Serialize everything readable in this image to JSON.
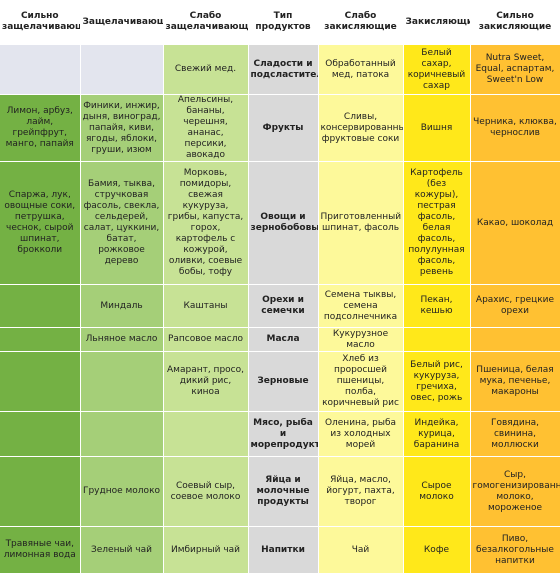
{
  "table": {
    "headers": [
      "Сильно защелачивающие",
      "Защелачивающие",
      "Слабо защелачивающие",
      "Тип продуктов",
      "Слабо закисляющие",
      "Закисляющие",
      "Сильно закисляющие"
    ],
    "rows": [
      [
        null,
        null,
        "Свежий мед.",
        "Сладости и подсластители",
        "Обработанный мед, патока",
        "Белый сахар, коричневый сахар",
        "Nutra Sweet, Equal, аспартам, Sweet'n Low"
      ],
      [
        "Лимон, арбуз, лайм, грейпфрут, манго, папайя",
        "Финики, инжир, дыня, виноград, папайя, киви, ягоды, яблоки, груши, изюм",
        "Апельсины, бананы, черешня, ананас, персики, авокадо",
        "Фрукты",
        "Сливы, консервированные фруктовые соки",
        "Вишня",
        "Черника, клюква, чернослив"
      ],
      [
        "Спаржа, лук, овощные соки, петрушка, чеснок, сырой шпинат, брокколи",
        "Бамия, тыква, стручковая фасоль, свекла, сельдерей, салат, цуккини, батат, рожковое дерево",
        "Морковь, помидоры, свежая кукуруза, грибы, капуста, горох, картофель с кожурой, оливки, соевые бобы, тофу",
        "Овощи и зернобобовые",
        "Приготовленный шпинат, фасоль",
        "Картофель (без кожуры), пестрая фасоль, белая фасоль, полулунная фасоль, ревень",
        "Какао, шоколад"
      ],
      [
        null,
        "Миндаль",
        "Каштаны",
        "Орехи и семечки",
        "Семена тыквы, семена подсолнечника",
        "Пекан, кешью",
        "Арахис, грецкие орехи"
      ],
      [
        null,
        "Льняное масло",
        "Рапсовое масло",
        "Масла",
        "Кукурузное масло",
        null,
        null
      ],
      [
        null,
        null,
        "Амарант, просо, дикий рис, киноа",
        "Зерновые",
        "Хлеб из проросшей пшеницы, полба, коричневый рис",
        "Белый рис, кукуруза, гречиха, овес, рожь",
        "Пшеница, белая мука, печенье, макароны"
      ],
      [
        null,
        null,
        null,
        "Мясо, рыба и морепродукты",
        "Оленина, рыба из холодных морей",
        "Индейка, курица, баранина",
        "Говядина, свинина, моллюски"
      ],
      [
        null,
        "Грудное молоко",
        "Соевый сыр, соевое молоко",
        "Яйца и молочные продукты",
        "Яйца, масло, йогурт, пахта, творог",
        "Сырое молоко",
        "Сыр, гомогенизированное молоко, мороженое"
      ],
      [
        "Травяные чаи, лимонная вода",
        "Зеленый чай",
        "Имбирный чай",
        "Напитки",
        "Чай",
        "Кофе",
        "Пиво, безалкогольные напитки"
      ]
    ]
  }
}
